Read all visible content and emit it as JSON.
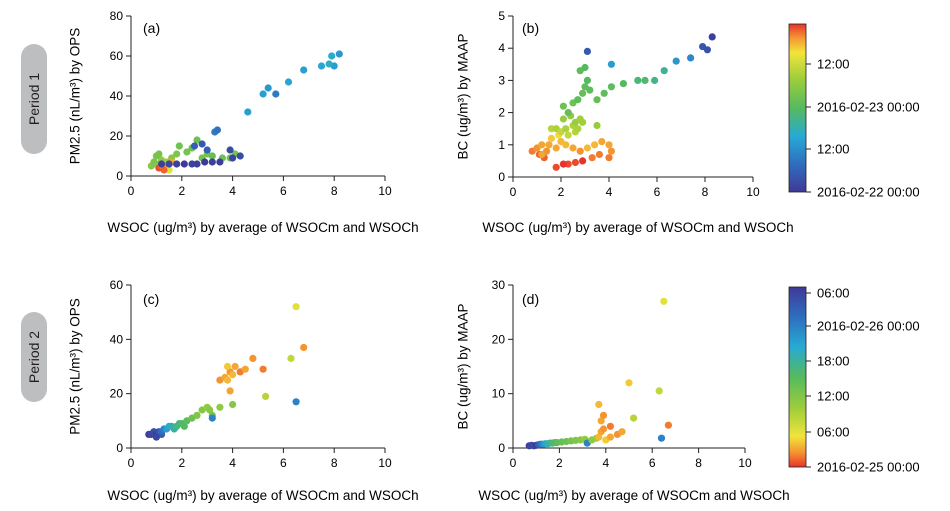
{
  "periods": [
    "Period 1",
    "Period 2"
  ],
  "colorbars": [
    {
      "ticks": [
        "12:00",
        "2016-02-23 00:00",
        "12:00",
        "2016-02-22 00:00"
      ]
    },
    {
      "ticks": [
        "06:00",
        "2016-02-26 00:00",
        "18:00",
        "12:00",
        "06:00",
        "2016-02-25 00:00"
      ]
    }
  ],
  "chart_data": [
    {
      "type": "scatter",
      "label": "(a)",
      "xlabel": "WSOC (ug/m³) by average of WSOCm and WSOCh",
      "ylabel": "PM2.5 (nL/m³) by OPS",
      "xlim": [
        0,
        10
      ],
      "ylim": [
        0,
        80
      ],
      "xticks": [
        0,
        2,
        4,
        6,
        8,
        10
      ],
      "yticks": [
        0,
        20,
        40,
        60,
        80
      ],
      "colorbar": 0,
      "grid": false,
      "points": [
        [
          0.8,
          5,
          0.62
        ],
        [
          1.0,
          6,
          0.62
        ],
        [
          1.1,
          5,
          0.66
        ],
        [
          0.9,
          7,
          0.6
        ],
        [
          1.2,
          8,
          0.64
        ],
        [
          1.0,
          10,
          0.58
        ],
        [
          1.1,
          11,
          0.58
        ],
        [
          1.4,
          7,
          0.66
        ],
        [
          1.6,
          9,
          0.62
        ],
        [
          1.8,
          11,
          0.6
        ],
        [
          1.9,
          15,
          0.56
        ],
        [
          2.2,
          12,
          0.58
        ],
        [
          2.4,
          14,
          0.56
        ],
        [
          2.6,
          18,
          0.56
        ],
        [
          2.8,
          9,
          0.58
        ],
        [
          3.0,
          11,
          0.58
        ],
        [
          3.2,
          10,
          0.54
        ],
        [
          3.6,
          9,
          0.56
        ],
        [
          3.9,
          9,
          0.58
        ],
        [
          4.1,
          11,
          0.58
        ],
        [
          2.5,
          15,
          0.12
        ],
        [
          2.8,
          16,
          0.1
        ],
        [
          3.0,
          13,
          0.12
        ],
        [
          3.3,
          22,
          0.2
        ],
        [
          3.4,
          23,
          0.18
        ],
        [
          3.9,
          13,
          0.06
        ],
        [
          4.0,
          9,
          0.04
        ],
        [
          4.3,
          10,
          0.06
        ],
        [
          1.1,
          4,
          0.98
        ],
        [
          1.2,
          5,
          0.96
        ],
        [
          1.3,
          4,
          0.92
        ],
        [
          1.4,
          5,
          0.9
        ],
        [
          1.5,
          6,
          0.94
        ],
        [
          1.2,
          6,
          0.86
        ],
        [
          1.5,
          3,
          0.8
        ],
        [
          1.6,
          7,
          0.9
        ],
        [
          1.3,
          3,
          0.96
        ],
        [
          1.2,
          6,
          0.02
        ],
        [
          1.5,
          6,
          0.04
        ],
        [
          1.8,
          6,
          0.02
        ],
        [
          2.1,
          6,
          0.0
        ],
        [
          2.4,
          6,
          0.03
        ],
        [
          2.6,
          6,
          0.02
        ],
        [
          2.9,
          7,
          0.0
        ],
        [
          3.2,
          7,
          0.02
        ],
        [
          3.5,
          7,
          0.01
        ],
        [
          4.6,
          32,
          0.3
        ],
        [
          5.2,
          41,
          0.3
        ],
        [
          5.4,
          44,
          0.28
        ],
        [
          5.7,
          41,
          0.2
        ],
        [
          6.2,
          47,
          0.32
        ],
        [
          6.8,
          53,
          0.3
        ],
        [
          7.5,
          55,
          0.32
        ],
        [
          7.9,
          60,
          0.34
        ],
        [
          8.0,
          55,
          0.3
        ],
        [
          8.2,
          61,
          0.28
        ],
        [
          7.8,
          56,
          0.36
        ]
      ]
    },
    {
      "type": "scatter",
      "label": "(b)",
      "xlabel": "WSOC (ug/m³) by average of WSOCm and WSOCh",
      "ylabel": "BC (ug/m³) by MAAP",
      "xlim": [
        0,
        10
      ],
      "ylim": [
        0,
        5
      ],
      "xticks": [
        0,
        2,
        4,
        6,
        8,
        10
      ],
      "yticks": [
        0,
        1,
        2,
        3,
        4,
        5
      ],
      "colorbar": 0,
      "grid": false,
      "points": [
        [
          0.8,
          0.8,
          0.94
        ],
        [
          1.0,
          0.9,
          0.92
        ],
        [
          1.1,
          0.7,
          0.96
        ],
        [
          1.2,
          1.0,
          0.9
        ],
        [
          1.4,
          0.8,
          0.92
        ],
        [
          1.5,
          1.0,
          0.9
        ],
        [
          1.6,
          1.2,
          0.86
        ],
        [
          1.3,
          0.6,
          0.96
        ],
        [
          1.8,
          0.9,
          0.9
        ],
        [
          2.0,
          1.1,
          0.88
        ],
        [
          2.2,
          1.0,
          0.88
        ],
        [
          2.5,
          0.9,
          0.9
        ],
        [
          2.8,
          0.8,
          0.92
        ],
        [
          3.1,
          0.9,
          0.88
        ],
        [
          3.4,
          1.0,
          0.88
        ],
        [
          3.7,
          1.1,
          0.9
        ],
        [
          4.0,
          1.0,
          0.9
        ],
        [
          4.1,
          0.8,
          0.92
        ],
        [
          4.0,
          0.6,
          0.94
        ],
        [
          3.6,
          0.7,
          0.94
        ],
        [
          3.3,
          0.6,
          0.94
        ],
        [
          2.9,
          0.5,
          1.0
        ],
        [
          2.6,
          0.45,
          0.98
        ],
        [
          2.3,
          0.4,
          0.98
        ],
        [
          2.1,
          0.4,
          1.0
        ],
        [
          1.8,
          0.3,
          0.98
        ],
        [
          1.2,
          0.7,
          0.9
        ],
        [
          1.9,
          1.3,
          0.84
        ],
        [
          1.6,
          1.5,
          0.72
        ],
        [
          1.8,
          1.5,
          0.7
        ],
        [
          2.0,
          1.4,
          0.74
        ],
        [
          2.2,
          1.5,
          0.7
        ],
        [
          2.3,
          1.3,
          0.74
        ],
        [
          2.5,
          1.6,
          0.7
        ],
        [
          2.6,
          1.4,
          0.72
        ],
        [
          2.7,
          1.5,
          0.7
        ],
        [
          2.9,
          1.7,
          0.68
        ],
        [
          2.1,
          1.8,
          0.66
        ],
        [
          2.4,
          1.9,
          0.64
        ],
        [
          2.6,
          1.7,
          0.66
        ],
        [
          3.5,
          1.6,
          0.66
        ],
        [
          2.8,
          1.8,
          0.68
        ],
        [
          2.1,
          2.2,
          0.56
        ],
        [
          2.3,
          2.0,
          0.54
        ],
        [
          2.5,
          2.3,
          0.56
        ],
        [
          2.7,
          2.4,
          0.52
        ],
        [
          2.9,
          2.6,
          0.54
        ],
        [
          3.0,
          2.8,
          0.52
        ],
        [
          3.1,
          3.0,
          0.5
        ],
        [
          3.2,
          2.7,
          0.52
        ],
        [
          3.5,
          2.4,
          0.54
        ],
        [
          3.8,
          2.6,
          0.52
        ],
        [
          4.1,
          2.8,
          0.52
        ],
        [
          4.6,
          2.9,
          0.5
        ],
        [
          5.2,
          3.0,
          0.46
        ],
        [
          5.5,
          3.0,
          0.48
        ],
        [
          5.9,
          3.0,
          0.44
        ],
        [
          6.3,
          3.3,
          0.42
        ],
        [
          2.8,
          3.3,
          0.52
        ],
        [
          3.0,
          3.4,
          0.5
        ],
        [
          3.1,
          3.9,
          0.1
        ],
        [
          4.1,
          3.5,
          0.3
        ],
        [
          6.8,
          3.6,
          0.28
        ],
        [
          7.4,
          3.7,
          0.24
        ],
        [
          7.9,
          4.05,
          0.1
        ],
        [
          8.1,
          3.95,
          0.08
        ],
        [
          8.3,
          4.35,
          0.02
        ]
      ]
    },
    {
      "type": "scatter",
      "label": "(c)",
      "xlabel": "WSOC (ug/m³) by average of WSOCm and WSOCh",
      "ylabel": "PM2.5 (nL/m³) by OPS",
      "xlim": [
        0,
        10
      ],
      "ylim": [
        0,
        60
      ],
      "xticks": [
        0,
        2,
        4,
        6,
        8,
        10
      ],
      "yticks": [
        0,
        20,
        40,
        60
      ],
      "colorbar": 1,
      "grid": false,
      "points": [
        [
          0.7,
          5,
          0.02
        ],
        [
          0.8,
          5,
          0.04
        ],
        [
          0.9,
          6,
          0.06
        ],
        [
          1.0,
          5,
          0.0
        ],
        [
          1.1,
          6,
          0.08
        ],
        [
          1.2,
          5,
          0.1
        ],
        [
          1.0,
          4,
          0.04
        ],
        [
          1.2,
          6,
          0.16
        ],
        [
          1.3,
          7,
          0.22
        ],
        [
          1.4,
          7,
          0.3
        ],
        [
          1.5,
          8,
          0.34
        ],
        [
          1.6,
          8,
          0.38
        ],
        [
          1.7,
          7,
          0.4
        ],
        [
          1.8,
          8,
          0.44
        ],
        [
          1.9,
          9,
          0.46
        ],
        [
          2.0,
          9,
          0.48
        ],
        [
          2.1,
          8,
          0.5
        ],
        [
          2.2,
          10,
          0.52
        ],
        [
          2.4,
          11,
          0.56
        ],
        [
          2.6,
          12,
          0.6
        ],
        [
          2.8,
          14,
          0.62
        ],
        [
          3.0,
          15,
          0.64
        ],
        [
          3.1,
          14,
          0.62
        ],
        [
          3.2,
          12,
          0.58
        ],
        [
          3.2,
          11,
          0.22
        ],
        [
          3.5,
          15,
          0.64
        ],
        [
          4.0,
          16,
          0.62
        ],
        [
          3.5,
          25,
          0.92
        ],
        [
          3.7,
          26,
          0.9
        ],
        [
          3.8,
          25,
          0.88
        ],
        [
          3.9,
          28,
          0.92
        ],
        [
          4.0,
          27,
          0.88
        ],
        [
          4.1,
          30,
          0.9
        ],
        [
          3.8,
          30,
          0.86
        ],
        [
          4.3,
          28,
          0.94
        ],
        [
          4.5,
          29,
          0.9
        ],
        [
          4.8,
          33,
          0.92
        ],
        [
          5.2,
          29,
          0.94
        ],
        [
          3.9,
          21,
          0.9
        ],
        [
          5.3,
          19,
          0.72
        ],
        [
          6.3,
          33,
          0.74
        ],
        [
          6.5,
          52,
          0.8
        ],
        [
          6.8,
          37,
          0.92
        ],
        [
          6.5,
          17,
          0.22
        ]
      ]
    },
    {
      "type": "scatter",
      "label": "(d)",
      "xlabel": "WSOC (ug/m³) by average of WSOCm and WSOCh",
      "ylabel": "BC (ug/m³) by MAAP",
      "xlim": [
        0,
        10
      ],
      "ylim": [
        0,
        30
      ],
      "xticks": [
        0,
        2,
        4,
        6,
        8,
        10
      ],
      "yticks": [
        0,
        10,
        20,
        30
      ],
      "colorbar": 1,
      "grid": false,
      "points": [
        [
          0.7,
          0.4,
          0.02
        ],
        [
          0.8,
          0.5,
          0.04
        ],
        [
          0.9,
          0.4,
          0.06
        ],
        [
          1.0,
          0.5,
          0.0
        ],
        [
          1.1,
          0.6,
          0.1
        ],
        [
          1.2,
          0.7,
          0.18
        ],
        [
          1.3,
          0.7,
          0.26
        ],
        [
          1.4,
          0.8,
          0.32
        ],
        [
          1.5,
          0.8,
          0.38
        ],
        [
          1.6,
          0.9,
          0.42
        ],
        [
          1.7,
          0.9,
          0.46
        ],
        [
          1.8,
          1.0,
          0.48
        ],
        [
          1.9,
          1.0,
          0.52
        ],
        [
          2.1,
          1.1,
          0.54
        ],
        [
          2.3,
          1.2,
          0.56
        ],
        [
          2.5,
          1.3,
          0.58
        ],
        [
          2.7,
          1.4,
          0.6
        ],
        [
          2.9,
          1.5,
          0.62
        ],
        [
          3.1,
          1.6,
          0.64
        ],
        [
          3.2,
          0.9,
          0.22
        ],
        [
          3.4,
          1.5,
          0.64
        ],
        [
          3.6,
          1.8,
          0.66
        ],
        [
          3.7,
          2.0,
          0.88
        ],
        [
          3.8,
          3.0,
          0.9
        ],
        [
          3.9,
          3.5,
          0.92
        ],
        [
          3.8,
          5.0,
          0.9
        ],
        [
          3.9,
          6.0,
          0.92
        ],
        [
          3.7,
          8.0,
          0.88
        ],
        [
          4.0,
          1.5,
          0.86
        ],
        [
          4.2,
          2.0,
          0.9
        ],
        [
          4.2,
          4.0,
          0.94
        ],
        [
          4.5,
          2.5,
          0.92
        ],
        [
          4.7,
          3.0,
          0.9
        ],
        [
          5.0,
          12.0,
          0.86
        ],
        [
          5.2,
          5.5,
          0.72
        ],
        [
          6.3,
          10.5,
          0.74
        ],
        [
          6.5,
          27.0,
          0.8
        ],
        [
          6.7,
          4.2,
          0.94
        ],
        [
          6.4,
          1.8,
          0.22
        ]
      ]
    }
  ]
}
